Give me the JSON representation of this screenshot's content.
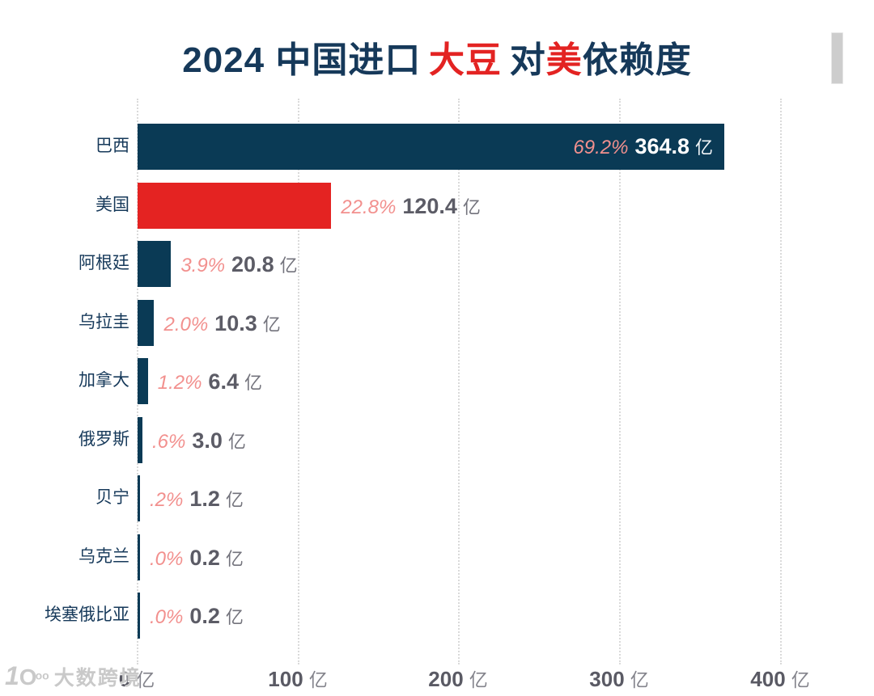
{
  "title": {
    "seg_prefix": "2024 中国进口",
    "seg_soybean": "大豆",
    "seg_dui": "对",
    "seg_us": "美",
    "seg_suffix": "依赖度"
  },
  "colors": {
    "bar_navy": "#0a3a55",
    "bar_red": "#e42322",
    "percent_pink": "#f2908e",
    "value_gray": "#5c5c66",
    "title_navy": "#16395a",
    "title_red": "#e32322",
    "grid_gray": "#dadada",
    "scrollbar_gray": "#cdcdcd",
    "watermark_gray": "#c9c9c9"
  },
  "watermark": {
    "logo_one": "1",
    "logo_o": "O",
    "logo_sup": "oo",
    "text": "大数跨境"
  },
  "chart_data": {
    "type": "bar",
    "orientation": "horizontal",
    "title": "2024 中国进口 大豆 对美依赖度",
    "value_unit": "亿",
    "xlim": [
      0,
      400
    ],
    "grid": "dotted-vertical",
    "x_ticks": [
      {
        "label": "0",
        "unit": "亿"
      },
      {
        "label": "100",
        "unit": "亿"
      },
      {
        "label": "200",
        "unit": "亿"
      },
      {
        "label": "300",
        "unit": "亿"
      },
      {
        "label": "400",
        "unit": "亿"
      }
    ],
    "rows": [
      {
        "country": "巴西",
        "percent": "69.2%",
        "percent_num": 69.2,
        "value": "364.8",
        "value_num": 364.8,
        "unit": "亿",
        "color": "#0a3a55",
        "label_inside": true
      },
      {
        "country": "美国",
        "percent": "22.8%",
        "percent_num": 22.8,
        "value": "120.4",
        "value_num": 120.4,
        "unit": "亿",
        "color": "#e42322",
        "label_inside": false
      },
      {
        "country": "阿根廷",
        "percent": "3.9%",
        "percent_num": 3.9,
        "value": "20.8",
        "value_num": 20.8,
        "unit": "亿",
        "color": "#0a3a55",
        "label_inside": false
      },
      {
        "country": "乌拉圭",
        "percent": "2.0%",
        "percent_num": 2.0,
        "value": "10.3",
        "value_num": 10.3,
        "unit": "亿",
        "color": "#0a3a55",
        "label_inside": false
      },
      {
        "country": "加拿大",
        "percent": "1.2%",
        "percent_num": 1.2,
        "value": "6.4",
        "value_num": 6.4,
        "unit": "亿",
        "color": "#0a3a55",
        "label_inside": false
      },
      {
        "country": "俄罗斯",
        "percent": ".6%",
        "percent_num": 0.6,
        "value": "3.0",
        "value_num": 3.0,
        "unit": "亿",
        "color": "#0a3a55",
        "label_inside": false
      },
      {
        "country": "贝宁",
        "percent": ".2%",
        "percent_num": 0.2,
        "value": "1.2",
        "value_num": 1.2,
        "unit": "亿",
        "color": "#0a3a55",
        "label_inside": false
      },
      {
        "country": "乌克兰",
        "percent": ".0%",
        "percent_num": 0.0,
        "value": "0.2",
        "value_num": 0.2,
        "unit": "亿",
        "color": "#0a3a55",
        "label_inside": false
      },
      {
        "country": "埃塞俄比亚",
        "percent": ".0%",
        "percent_num": 0.0,
        "value": "0.2",
        "value_num": 0.2,
        "unit": "亿",
        "color": "#0a3a55",
        "label_inside": false
      }
    ]
  }
}
